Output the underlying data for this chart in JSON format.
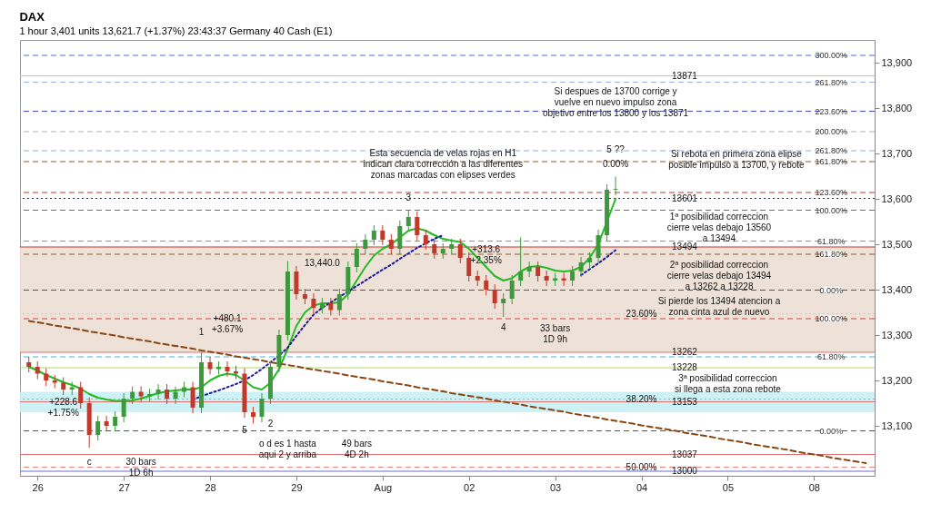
{
  "chart_data": {
    "type": "candlestick",
    "title": "DAX",
    "subtitle": "1 hour   3,401 units   13,621.7 (+1.37%)  23:43:37   Germany 40 Cash (E1)",
    "categories": [
      null,
      "26",
      null,
      null,
      null,
      null,
      null,
      null,
      null,
      null,
      null,
      "27",
      null,
      null,
      null,
      null,
      null,
      null,
      null,
      null,
      null,
      "28",
      null,
      null,
      null,
      null,
      null,
      null,
      null,
      null,
      null,
      "29",
      null,
      null,
      null,
      null,
      null,
      null,
      null,
      null,
      null,
      "Aug",
      null,
      null,
      null,
      null,
      null,
      null,
      null,
      null,
      null,
      "02",
      null,
      null,
      null,
      null,
      null,
      null,
      null,
      null,
      null,
      "03",
      null,
      null,
      null,
      null,
      null,
      null,
      null,
      null,
      null,
      "04",
      null,
      null,
      null,
      null,
      null,
      null,
      null,
      null,
      null,
      "05",
      null,
      null,
      null,
      null,
      null,
      null,
      null,
      null,
      null,
      "08",
      null,
      null,
      null,
      null,
      null,
      null
    ],
    "ohlc": [
      [
        13240,
        13252,
        13218,
        13230
      ],
      [
        13230,
        13242,
        13203,
        13215
      ],
      [
        13215,
        13227,
        13188,
        13200
      ],
      [
        13200,
        13212,
        13183,
        13195
      ],
      [
        13195,
        13207,
        13168,
        13180
      ],
      [
        13180,
        13197,
        13168,
        13185
      ],
      [
        13185,
        13197,
        13138,
        13150
      ],
      [
        13150,
        13162,
        13052,
        13080
      ],
      [
        13080,
        13122,
        13068,
        13110
      ],
      [
        13110,
        13122,
        13088,
        13100
      ],
      [
        13100,
        13132,
        13088,
        13120
      ],
      [
        13120,
        13172,
        13108,
        13160
      ],
      [
        13160,
        13187,
        13148,
        13175
      ],
      [
        13175,
        13187,
        13153,
        13165
      ],
      [
        13165,
        13182,
        13153,
        13170
      ],
      [
        13170,
        13192,
        13158,
        13180
      ],
      [
        13180,
        13192,
        13148,
        13160
      ],
      [
        13160,
        13187,
        13148,
        13175
      ],
      [
        13175,
        13197,
        13163,
        13185
      ],
      [
        13185,
        13197,
        13128,
        13140
      ],
      [
        13140,
        13262,
        13128,
        13240
      ],
      [
        13240,
        13252,
        13213,
        13225
      ],
      [
        13225,
        13242,
        13213,
        13230
      ],
      [
        13230,
        13242,
        13208,
        13220
      ],
      [
        13220,
        13232,
        13203,
        13215
      ],
      [
        13215,
        13227,
        13118,
        13130
      ],
      [
        13130,
        13142,
        13105,
        13120
      ],
      [
        13120,
        13172,
        13108,
        13160
      ],
      [
        13160,
        13242,
        13148,
        13230
      ],
      [
        13230,
        13312,
        13218,
        13300
      ],
      [
        13300,
        13463,
        13288,
        13440
      ],
      [
        13440,
        13452,
        13378,
        13390
      ],
      [
        13390,
        13402,
        13368,
        13380
      ],
      [
        13380,
        13392,
        13348,
        13360
      ],
      [
        13360,
        13382,
        13348,
        13370
      ],
      [
        13370,
        13382,
        13343,
        13355
      ],
      [
        13355,
        13402,
        13343,
        13390
      ],
      [
        13390,
        13462,
        13378,
        13450
      ],
      [
        13450,
        13502,
        13438,
        13490
      ],
      [
        13490,
        13522,
        13478,
        13510
      ],
      [
        13510,
        13542,
        13498,
        13530
      ],
      [
        13530,
        13542,
        13498,
        13510
      ],
      [
        13510,
        13522,
        13478,
        13490
      ],
      [
        13490,
        13552,
        13478,
        13540
      ],
      [
        13540,
        13575,
        13528,
        13560
      ],
      [
        13560,
        13572,
        13508,
        13520
      ],
      [
        13520,
        13532,
        13488,
        13500
      ],
      [
        13500,
        13512,
        13468,
        13480
      ],
      [
        13480,
        13502,
        13468,
        13490
      ],
      [
        13490,
        13512,
        13478,
        13500
      ],
      [
        13500,
        13512,
        13458,
        13470
      ],
      [
        13470,
        13482,
        13418,
        13430
      ],
      [
        13430,
        13442,
        13408,
        13420
      ],
      [
        13420,
        13432,
        13388,
        13400
      ],
      [
        13400,
        13412,
        13358,
        13370
      ],
      [
        13370,
        13392,
        13340,
        13380
      ],
      [
        13380,
        13432,
        13368,
        13420
      ],
      [
        13420,
        13515,
        13408,
        13440
      ],
      [
        13440,
        13462,
        13428,
        13450
      ],
      [
        13450,
        13462,
        13418,
        13430
      ],
      [
        13430,
        13442,
        13408,
        13420
      ],
      [
        13420,
        13437,
        13408,
        13425
      ],
      [
        13425,
        13437,
        13408,
        13420
      ],
      [
        13420,
        13452,
        13408,
        13440
      ],
      [
        13440,
        13472,
        13428,
        13460
      ],
      [
        13460,
        13482,
        13448,
        13470
      ],
      [
        13470,
        13532,
        13458,
        13520
      ],
      [
        13520,
        13632,
        13508,
        13620
      ],
      [
        13620,
        13649,
        13608,
        13621.7
      ],
      null,
      null,
      null,
      null,
      null,
      null,
      null,
      null,
      null,
      null,
      null,
      null,
      null,
      null,
      null,
      null,
      null,
      null,
      null,
      null,
      null,
      null,
      null,
      null,
      null,
      null,
      null,
      null,
      null
    ],
    "colors": [
      "#c0392b",
      "#c0392b",
      "#c0392b",
      "#c0392b",
      "#c0392b",
      "#3c9a3c",
      "#c0392b",
      "#c0392b",
      "#3c9a3c",
      "#c0392b",
      "#3c9a3c",
      "#3c9a3c",
      "#3c9a3c",
      "#c0392b",
      "#3c9a3c",
      "#3c9a3c",
      "#c0392b",
      "#3c9a3c",
      "#3c9a3c",
      "#c0392b",
      "#3c9a3c",
      "#c0392b",
      "#3c9a3c",
      "#c0392b",
      "#c0392b",
      "#c0392b",
      "#c0392b",
      "#3c9a3c",
      "#3c9a3c",
      "#3c9a3c",
      "#3c9a3c",
      "#c0392b",
      "#c0392b",
      "#c0392b",
      "#3c9a3c",
      "#c0392b",
      "#3c9a3c",
      "#3c9a3c",
      "#3c9a3c",
      "#3c9a3c",
      "#3c9a3c",
      "#c0392b",
      "#c0392b",
      "#3c9a3c",
      "#3c9a3c",
      "#c0392b",
      "#c0392b",
      "#c0392b",
      "#3c9a3c",
      "#3c9a3c",
      "#c0392b",
      "#c0392b",
      "#c0392b",
      "#c0392b",
      "#c0392b",
      "#3c9a3c",
      "#3c9a3c",
      "#3c9a3c",
      "#3c9a3c",
      "#c0392b",
      "#c0392b",
      "#3c9a3c",
      "#c0392b",
      "#3c9a3c",
      "#3c9a3c",
      "#3c9a3c",
      "#3c9a3c",
      "#3c9a3c",
      "#3c9a3c",
      null,
      null,
      null,
      null,
      null,
      null,
      null,
      null,
      null,
      null,
      null,
      null,
      null,
      null,
      null,
      null,
      null,
      null,
      null,
      null,
      null,
      null,
      null,
      null,
      null,
      null,
      null,
      null,
      null
    ],
    "series": [
      {
        "type": "line",
        "color": "#22bb22",
        "line_style": "solid",
        "values": [
          13230,
          13222,
          13212,
          13204,
          13196,
          13190,
          13182,
          13170,
          13162,
          13158,
          13155,
          13155,
          13156,
          13160,
          13166,
          13172,
          13176,
          13178,
          13180,
          13180,
          13185,
          13200,
          13210,
          13215,
          13212,
          13200,
          13185,
          13180,
          13195,
          13225,
          13270,
          13320,
          13350,
          13365,
          13370,
          13370,
          13372,
          13390,
          13420,
          13450,
          13475,
          13490,
          13500,
          13515,
          13530,
          13535,
          13530,
          13520,
          13512,
          13508,
          13505,
          13490,
          13470,
          13450,
          13430,
          13420,
          13425,
          13440,
          13450,
          13452,
          13448,
          13442,
          13440,
          13442,
          13450,
          13470,
          13500,
          13550,
          13600,
          null,
          null,
          null,
          null,
          null,
          null,
          null,
          null,
          null,
          null,
          null,
          null,
          null,
          null,
          null,
          null,
          null,
          null,
          null,
          null,
          null,
          null,
          null,
          null,
          null,
          null,
          null,
          null,
          null
        ]
      },
      {
        "type": "line",
        "color": "#1a1aa0",
        "line_style": "dotted",
        "values": [
          null,
          null,
          null,
          null,
          null,
          null,
          null,
          null,
          null,
          null,
          null,
          null,
          null,
          null,
          null,
          null,
          null,
          null,
          null,
          13158,
          13165,
          13172,
          13178,
          13185,
          13192,
          13200,
          13212,
          13225,
          13240,
          13255,
          13272,
          13298,
          13322,
          13345,
          13360,
          13372,
          13384,
          13396,
          13408,
          13420,
          13432,
          13444,
          13455,
          13468,
          13480,
          13492,
          13502,
          13512,
          13520,
          null,
          null,
          null,
          null,
          null,
          null,
          null,
          null,
          null,
          null,
          null,
          null,
          null,
          null,
          null,
          13432,
          13445,
          13458,
          13472,
          13487,
          null,
          null,
          null,
          null,
          null,
          null,
          null,
          null,
          null,
          null,
          null,
          null,
          null,
          null,
          null,
          null,
          null,
          null,
          null,
          null,
          null,
          null,
          null,
          null,
          null,
          null,
          null,
          null,
          null
        ]
      },
      {
        "type": "line",
        "color": "#8b4513",
        "line_style": "dashed",
        "values": [
          13331,
          13328,
          13325,
          13321,
          13318,
          13315,
          13312,
          13308,
          13305,
          13302,
          13299,
          13295,
          13292,
          13289,
          13286,
          13282,
          13279,
          13276,
          13273,
          13270,
          13266,
          13263,
          13260,
          13257,
          13253,
          13250,
          13247,
          13244,
          13240,
          13237,
          13234,
          13231,
          13227,
          13224,
          13221,
          13218,
          13215,
          13211,
          13208,
          13205,
          13202,
          13198,
          13195,
          13192,
          13189,
          13185,
          13182,
          13179,
          13176,
          13172,
          13169,
          13166,
          13163,
          13160,
          13156,
          13153,
          13150,
          13147,
          13143,
          13140,
          13137,
          13134,
          13131,
          13127,
          13124,
          13121,
          13118,
          13114,
          13111,
          13108,
          13105,
          13101,
          13098,
          13095,
          13092,
          13089,
          13085,
          13082,
          13079,
          13076,
          13072,
          13069,
          13066,
          13063,
          13059,
          13056,
          13053,
          13050,
          13047,
          13043,
          13040,
          13037,
          13034,
          13030,
          13027,
          13024,
          13021,
          13018
        ]
      }
    ],
    "ylim": [
      12990,
      13950
    ],
    "yticks": [
      {
        "value": 13100,
        "label": "13,100"
      },
      {
        "value": 13200,
        "label": "13,200"
      },
      {
        "value": 13300,
        "label": "13,300"
      },
      {
        "value": 13400,
        "label": "13,400"
      },
      {
        "value": 13500,
        "label": "13,500"
      },
      {
        "value": 13600,
        "label": "13,600"
      },
      {
        "value": 13700,
        "label": "13,700"
      },
      {
        "value": 13800,
        "label": "13,800"
      },
      {
        "value": 13900,
        "label": "13,900"
      }
    ],
    "bands": [
      {
        "axis": "y",
        "from": 13262,
        "to": 13494,
        "color": "#ecdfd4"
      },
      {
        "axis": "y",
        "from": 13130,
        "to": 13175,
        "color": "#c6f1f5"
      }
    ],
    "ref_lines": [
      {
        "axis": "y",
        "value": 13916,
        "color": "#4a6fe0",
        "line_style": "dashed"
      },
      {
        "axis": "y",
        "value": 13871,
        "color": "#b5d96a",
        "line_style": "solid"
      },
      {
        "axis": "y",
        "value": 13857,
        "color": "#a0b4e8",
        "line_style": "dashed"
      },
      {
        "axis": "y",
        "value": 13793,
        "color": "#4a4ad0",
        "line_style": "dashed"
      },
      {
        "axis": "y",
        "value": 13748,
        "color": "#b0b0b0",
        "line_style": "dashed"
      },
      {
        "axis": "y",
        "value": 13706,
        "color": "#8fb0e8",
        "line_style": "dashed"
      },
      {
        "axis": "y",
        "value": 13682,
        "color": "#8b5a2b",
        "line_style": "dashed"
      },
      {
        "axis": "y",
        "value": 13614,
        "color": "#c0392b",
        "line_style": "dashed"
      },
      {
        "axis": "y",
        "value": 13601,
        "color": "#333333",
        "line_style": "dotted"
      },
      {
        "axis": "y",
        "value": 13575,
        "color": "#e04040",
        "line_style": "dashed"
      },
      {
        "axis": "y",
        "value": 13507,
        "color": "#3cb4e0",
        "line_style": "dashed"
      },
      {
        "axis": "y",
        "value": 13494,
        "color": "#c0392b",
        "line_style": "solid"
      },
      {
        "axis": "y",
        "value": 13478,
        "color": "#8b5a2b",
        "line_style": "dashed"
      },
      {
        "axis": "y",
        "value": 13399,
        "color": "#555555",
        "line_style": "dashed"
      },
      {
        "axis": "y",
        "value": 13347,
        "color": "#e8d44a",
        "line_style": "dotted"
      },
      {
        "axis": "y",
        "value": 13336,
        "color": "#e04040",
        "line_style": "dashed"
      },
      {
        "axis": "y",
        "value": 13262,
        "color": "#e07070",
        "line_style": "solid"
      },
      {
        "axis": "y",
        "value": 13252,
        "color": "#3cb4e0",
        "line_style": "dashed"
      },
      {
        "axis": "y",
        "value": 13228,
        "color": "#b5d96a",
        "line_style": "solid"
      },
      {
        "axis": "y",
        "value": 13159,
        "color": "#f0a030",
        "line_style": "dotted"
      },
      {
        "axis": "y",
        "value": 13153,
        "color": "#e07070",
        "line_style": "solid"
      },
      {
        "axis": "y",
        "value": 13089,
        "color": "#555555",
        "line_style": "dashed"
      },
      {
        "axis": "y",
        "value": 13037,
        "color": "#e07070",
        "line_style": "solid"
      },
      {
        "axis": "y",
        "value": 13009,
        "color": "#f08080",
        "line_style": "dashed"
      },
      {
        "axis": "y",
        "value": 13000,
        "color": "#6a6ad0",
        "line_style": "solid"
      }
    ],
    "annotations": [
      "Si despues de 13700 corrige y\nvuelve en nuevo impulso zona\nobjetivo entre los 13800 y los 13871",
      "Si rebota en primera zona elipse\nposible impulso a 13700, y rebote",
      "Esta secuencia de velas rojas en H1\nindican clara corrección a las diferentes\nzonas marcadas con elipses verdes",
      "1ª posibilidad correccion\ncierre velas debajo 13560\na 13494",
      "2ª posibilidad correccion\ncierre velas debajo 13494\na 13262 a 13228",
      "Si pierde los 13494 atencion a\nzona cinta azul de nuevo",
      "3ª posibilidad correccion\nsi llega a esta zona rebote",
      {
        "text": "+228.6\n+1.75%",
        "y": 13153
      },
      "30 bars\n1D 6h",
      "+480.1\n+3.67%",
      "o d es 1 hasta\naqui 2 y arriba",
      "49 bars\n4D 2h",
      {
        "text": "+313.6\n+2.35%",
        "y": 13489
      },
      "33 bars\n1D 9h",
      "13,440.0",
      {
        "text": "1",
        "y": 13262
      },
      "2",
      {
        "text": "3",
        "y": 13575
      },
      {
        "text": "4",
        "y": 13340
      },
      {
        "text": "5 ??",
        "y": 13649
      },
      {
        "text": "0.00%",
        "y": 13649
      },
      {
        "text": "c",
        "y": 13052
      },
      {
        "text": "5",
        "y": 13118
      },
      {
        "text": "300.00%",
        "y": 13916
      },
      {
        "text": "261.80%",
        "y": 13857
      },
      {
        "text": "223.60%",
        "y": 13793
      },
      {
        "text": "200.00%",
        "y": 13748
      },
      {
        "text": "261.80%",
        "y": 13706
      },
      {
        "text": "161.80%",
        "y": 13682
      },
      {
        "text": "123.60%",
        "y": 13614
      },
      {
        "text": "100.00%",
        "y": 13575
      },
      {
        "text": "61.80%",
        "y": 13507
      },
      {
        "text": "161.80%",
        "y": 13478
      },
      {
        "text": "0.00%",
        "y": 13399
      },
      {
        "text": "100.00%",
        "y": 13336
      },
      {
        "text": "61.80%",
        "y": 13252
      },
      {
        "text": "0.00%",
        "y": 13089
      },
      {
        "text": "23.60%",
        "x": "04",
        "y": 13347
      },
      {
        "text": "38.20%",
        "x": "04",
        "y": 13159
      },
      {
        "text": "50.00%",
        "x": "04",
        "y": 13009
      },
      {
        "text": "13871",
        "y": 13871
      },
      {
        "text": "13601",
        "y": 13601
      },
      {
        "text": "13494",
        "y": 13494
      },
      {
        "text": "13262",
        "y": 13262
      },
      {
        "text": "13228",
        "y": 13228
      },
      {
        "text": "13153",
        "y": 13153
      },
      {
        "text": "13037",
        "y": 13037
      },
      {
        "text": "13000",
        "y": 13000
      }
    ]
  }
}
